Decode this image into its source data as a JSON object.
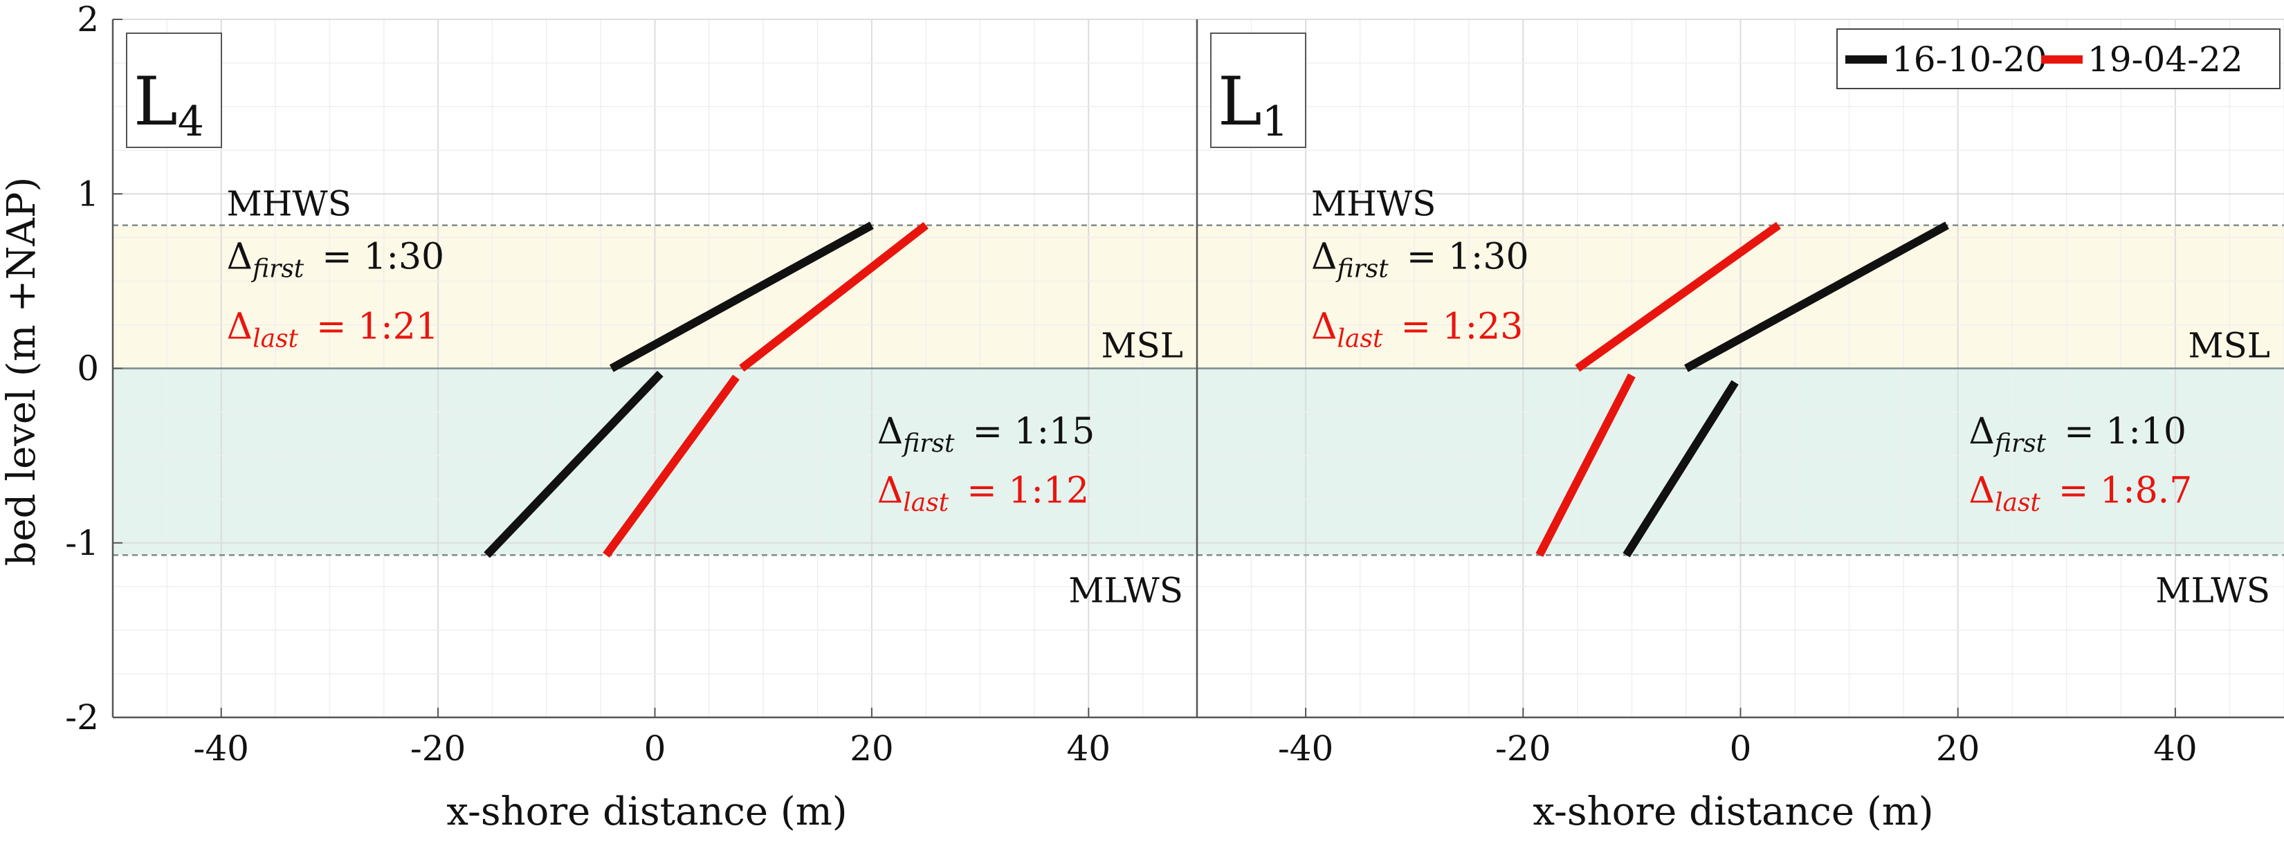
{
  "colors": {
    "first": "#111111",
    "last": "#e8150f",
    "upper_band": "#fdf9e7",
    "lower_band": "#e4f3ee",
    "mean_line": "#7a8a8a",
    "dashed_line": "#7d8c8c",
    "grid": "#e6e6e6"
  },
  "legend": {
    "placement": "top-right",
    "first_label": "16-10-20",
    "last_label": "19-04-22"
  },
  "chart_data": [
    {
      "type": "line",
      "panel_label": "L",
      "panel_subscript": "4",
      "xlabel": "x-shore distance (m)",
      "ylabel": "bed level (m +NAP)",
      "xlim": [
        -50,
        50
      ],
      "ylim": [
        -2,
        2
      ],
      "x_ticks": [
        "-40",
        "-20",
        "0",
        "20",
        "40"
      ],
      "y_ticks": [
        "2",
        "1",
        "0",
        "-1",
        "-2"
      ],
      "grid": true,
      "levels": {
        "MHWS": 0.82,
        "MSL": 0.0,
        "MLWS": -1.07
      },
      "level_labels": {
        "MHWS": "MHWS",
        "MSL": "MSL",
        "MLWS": "MLWS"
      },
      "series": [
        {
          "name": "16-10-20",
          "color_key": "first",
          "segments": [
            [
              [
                -4,
                0.0
              ],
              [
                20,
                0.82
              ]
            ],
            [
              [
                -15.5,
                -1.07
              ],
              [
                0.5,
                -0.03
              ]
            ]
          ]
        },
        {
          "name": "19-04-22",
          "color_key": "last",
          "segments": [
            [
              [
                8,
                0.0
              ],
              [
                25,
                0.82
              ]
            ],
            [
              [
                -4.5,
                -1.07
              ],
              [
                7.5,
                -0.05
              ]
            ]
          ]
        }
      ],
      "annotations": {
        "upper": {
          "first_symbol": "Δ",
          "first_sub": "first",
          "first_value": "= 1:30",
          "last_symbol": "Δ",
          "last_sub": "last",
          "last_value": "= 1:21"
        },
        "lower": {
          "first_symbol": "Δ",
          "first_sub": "first",
          "first_value": "= 1:15",
          "last_symbol": "Δ",
          "last_sub": "last",
          "last_value": "= 1:12"
        }
      }
    },
    {
      "type": "line",
      "panel_label": "L",
      "panel_subscript": "1",
      "xlabel": "x-shore distance (m)",
      "ylabel": "",
      "xlim": [
        -50,
        50
      ],
      "ylim": [
        -2,
        2
      ],
      "x_ticks": [
        "-40",
        "-20",
        "0",
        "20",
        "40"
      ],
      "y_ticks": [],
      "grid": true,
      "levels": {
        "MHWS": 0.82,
        "MSL": 0.0,
        "MLWS": -1.07
      },
      "level_labels": {
        "MHWS": "MHWS",
        "MSL": "MSL",
        "MLWS": "MLWS"
      },
      "series": [
        {
          "name": "16-10-20",
          "color_key": "first",
          "segments": [
            [
              [
                -5,
                0.0
              ],
              [
                19,
                0.82
              ]
            ],
            [
              [
                -10.5,
                -1.07
              ],
              [
                -0.5,
                -0.08
              ]
            ]
          ]
        },
        {
          "name": "19-04-22",
          "color_key": "last",
          "segments": [
            [
              [
                -15,
                0.0
              ],
              [
                3.5,
                0.82
              ]
            ],
            [
              [
                -18.5,
                -1.07
              ],
              [
                -10,
                -0.04
              ]
            ]
          ]
        }
      ],
      "annotations": {
        "upper": {
          "first_symbol": "Δ",
          "first_sub": "first",
          "first_value": "= 1:30",
          "last_symbol": "Δ",
          "last_sub": "last",
          "last_value": "= 1:23"
        },
        "lower": {
          "first_symbol": "Δ",
          "first_sub": "first",
          "first_value": "= 1:10",
          "last_symbol": "Δ",
          "last_sub": "last",
          "last_value": "= 1:8.7"
        }
      }
    }
  ]
}
